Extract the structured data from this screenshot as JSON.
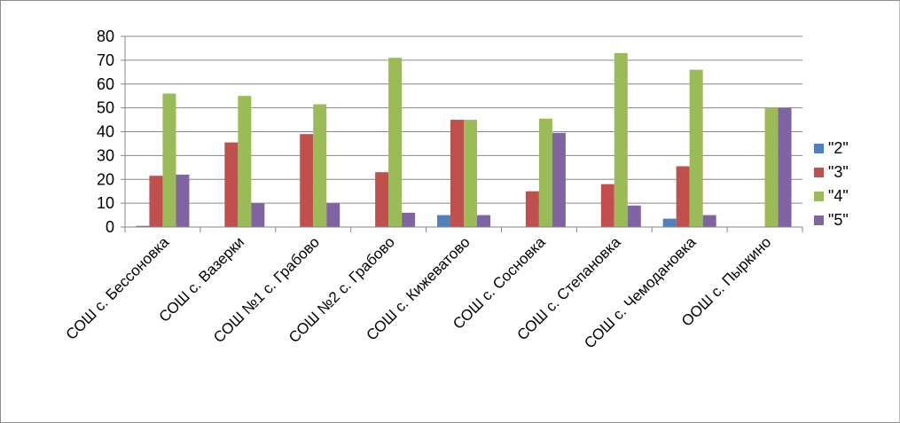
{
  "chart_data": {
    "type": "bar",
    "title": "",
    "xlabel": "",
    "ylabel": "",
    "ylim": [
      0,
      80
    ],
    "yticks": [
      0,
      10,
      20,
      30,
      40,
      50,
      60,
      70,
      80
    ],
    "grid": true,
    "legend_position": "right",
    "categories": [
      "СОШ с. Бессоновка",
      "СОШ с. Вазерки",
      "СОШ №1 с. Грабово",
      "СОШ №2 с. Грабово",
      "СОШ с. Кижеватово",
      "СОШ с. Сосновка",
      "СОШ с. Степановка",
      "СОШ с. Чемодановка",
      "ООШ с. Пыркино"
    ],
    "series": [
      {
        "name": "\"2\"",
        "color": "#4F81BD",
        "values": [
          0.5,
          0,
          0,
          0,
          5,
          0,
          0,
          3.5,
          0
        ]
      },
      {
        "name": "\"3\"",
        "color": "#C0504D",
        "values": [
          21.5,
          35.5,
          39,
          23,
          45,
          15,
          18,
          25.5,
          0
        ]
      },
      {
        "name": "\"4\"",
        "color": "#9BBB59",
        "values": [
          56,
          55,
          51.5,
          71,
          45,
          45.5,
          73,
          66,
          50
        ]
      },
      {
        "name": "\"5\"",
        "color": "#8064A2",
        "values": [
          22,
          10,
          10,
          6,
          5,
          39.5,
          9,
          5,
          50
        ]
      }
    ]
  }
}
